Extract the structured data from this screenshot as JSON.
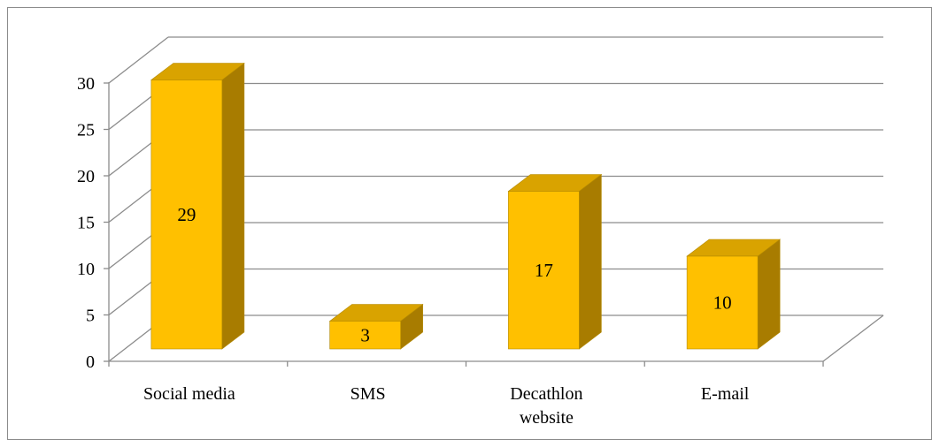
{
  "chart_data": {
    "type": "bar",
    "categories": [
      "Social media",
      "SMS",
      "Decathlon website",
      "E-mail"
    ],
    "category_lines": [
      [
        "Social media"
      ],
      [
        "SMS"
      ],
      [
        "Decathlon",
        "website"
      ],
      [
        "E-mail"
      ]
    ],
    "values": [
      29,
      3,
      17,
      10
    ],
    "data_labels": [
      "29",
      "3",
      "17",
      "10"
    ],
    "title": "",
    "xlabel": "",
    "ylabel": "",
    "ylim": [
      0,
      30
    ],
    "ytick_step": 5,
    "yticks": [
      "0",
      "5",
      "10",
      "15",
      "20",
      "25",
      "30"
    ],
    "grid": true,
    "legend": "none",
    "style": "3d",
    "colors": {
      "bar_front": "#ffc000",
      "bar_top": "#d9a300",
      "bar_side": "#a87c00",
      "bar_stroke": "#b38900",
      "grid": "#8c8c8c"
    }
  }
}
